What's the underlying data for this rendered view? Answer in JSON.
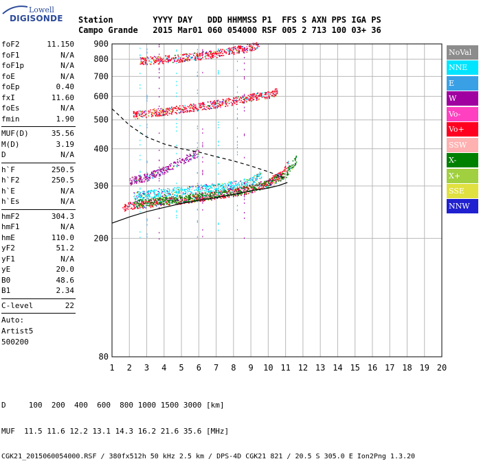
{
  "logo": {
    "line1": "Lowell",
    "line2": "DIGISONDE"
  },
  "header": {
    "labels": "Station        YYYY DAY   DDD HHMMSS P1  FFS S AXN PPS IGA PS",
    "values": "Campo Grande   2015 Mar01 060 054000 RSF 005 2 713 100 03+ 36"
  },
  "params": {
    "group1": [
      {
        "k": "foF2",
        "v": "11.150"
      },
      {
        "k": "foF1",
        "v": "N/A"
      },
      {
        "k": "foF1p",
        "v": "N/A"
      },
      {
        "k": "foE",
        "v": "N/A"
      },
      {
        "k": "foEp",
        "v": "0.40"
      },
      {
        "k": "fxI",
        "v": "11.60"
      },
      {
        "k": "foEs",
        "v": "N/A"
      },
      {
        "k": "fmin",
        "v": "1.90"
      }
    ],
    "group2": [
      {
        "k": "MUF(D)",
        "v": "35.56"
      },
      {
        "k": "M(D)",
        "v": "3.19"
      },
      {
        "k": "D",
        "v": "N/A"
      }
    ],
    "group3": [
      {
        "k": "h`F",
        "v": "250.5"
      },
      {
        "k": "h`F2",
        "v": "250.5"
      },
      {
        "k": "h`E",
        "v": "N/A"
      },
      {
        "k": "h`Es",
        "v": "N/A"
      }
    ],
    "group4": [
      {
        "k": "hmF2",
        "v": "304.3"
      },
      {
        "k": "hmF1",
        "v": "N/A"
      },
      {
        "k": "hmE",
        "v": "110.0"
      },
      {
        "k": "yF2",
        "v": "51.2"
      },
      {
        "k": "yF1",
        "v": "N/A"
      },
      {
        "k": "yE",
        "v": "20.0"
      },
      {
        "k": "B0",
        "v": "48.6"
      },
      {
        "k": "B1",
        "v": "2.34"
      }
    ],
    "clevel": {
      "k": "C-level",
      "v": "22"
    },
    "auto": [
      "Auto:",
      "Artist5",
      "500200"
    ]
  },
  "legend": [
    {
      "label": "NoVal",
      "color": "#8c8c8c"
    },
    {
      "label": "NNE",
      "color": "#00e5ff"
    },
    {
      "label": "E",
      "color": "#3aa0e6"
    },
    {
      "label": "W",
      "color": "#a000a0"
    },
    {
      "label": "Vo-",
      "color": "#ff40c0"
    },
    {
      "label": "Vo+",
      "color": "#ff0020"
    },
    {
      "label": "SSW",
      "color": "#ffb0b0"
    },
    {
      "label": "X-",
      "color": "#008000"
    },
    {
      "label": "X+",
      "color": "#a0d040"
    },
    {
      "label": "SSE",
      "color": "#e0e040"
    },
    {
      "label": "NNW",
      "color": "#2020d0"
    }
  ],
  "footer": {
    "line1": "D     100  200  400  600  800 1000 1500 3000 [km]",
    "line2": "MUF  11.5 11.6 12.2 13.1 14.3 16.2 21.6 35.6 [MHz]",
    "line3": "CGK21_2015060054000.RSF / 380fx512h 50 kHz 2.5 km / DPS-4D CGK21 821 / 20.5 S 305.0 E Ion2Png 1.3.20"
  },
  "chart_data": {
    "type": "scatter",
    "title": "",
    "xlabel": "",
    "ylabel": "",
    "xlim": [
      1,
      20
    ],
    "ylim": [
      80,
      900
    ],
    "y_scale": "log",
    "x_ticks": [
      1,
      2,
      3,
      4,
      5,
      6,
      7,
      8,
      9,
      10,
      11,
      12,
      13,
      14,
      15,
      16,
      17,
      18,
      19,
      20
    ],
    "y_ticks": [
      80,
      200,
      300,
      400,
      500,
      600,
      700,
      800,
      900
    ],
    "grid": true,
    "traces": [
      {
        "name": "F2 O-trace",
        "color": "#ff0020",
        "points": [
          [
            1.6,
            255
          ],
          [
            2,
            258
          ],
          [
            3,
            262
          ],
          [
            4,
            266
          ],
          [
            5,
            270
          ],
          [
            6,
            275
          ],
          [
            7,
            280
          ],
          [
            8,
            286
          ],
          [
            9,
            293
          ],
          [
            10,
            310
          ],
          [
            10.8,
            330
          ],
          [
            11.15,
            360
          ]
        ]
      },
      {
        "name": "F2 X-trace",
        "color": "#008000",
        "points": [
          [
            2.2,
            262
          ],
          [
            3,
            265
          ],
          [
            4,
            268
          ],
          [
            5,
            272
          ],
          [
            6,
            277
          ],
          [
            7,
            282
          ],
          [
            8,
            289
          ],
          [
            9,
            296
          ],
          [
            10,
            305
          ],
          [
            11,
            330
          ],
          [
            11.6,
            370
          ]
        ]
      },
      {
        "name": "Oblique",
        "color": "#00e5ff",
        "points": [
          [
            2.2,
            278
          ],
          [
            3,
            282
          ],
          [
            4,
            286
          ],
          [
            5,
            290
          ],
          [
            6,
            294
          ],
          [
            7,
            298
          ],
          [
            8,
            303
          ],
          [
            9,
            312
          ],
          [
            9.6,
            330
          ]
        ]
      },
      {
        "name": "Upper",
        "color": "#a000a0",
        "points": [
          [
            2,
            312
          ],
          [
            3,
            322
          ],
          [
            4,
            340
          ],
          [
            5,
            365
          ],
          [
            6,
            390
          ]
        ]
      },
      {
        "name": "2F multiple",
        "color": "#ff0020",
        "points": [
          [
            2.2,
            520
          ],
          [
            3,
            527
          ],
          [
            4,
            535
          ],
          [
            5,
            545
          ],
          [
            6,
            555
          ],
          [
            7,
            567
          ],
          [
            8,
            580
          ],
          [
            9,
            595
          ],
          [
            10,
            610
          ],
          [
            10.5,
            625
          ]
        ]
      },
      {
        "name": "3F multiple",
        "color": "#ff0020",
        "points": [
          [
            2.6,
            790
          ],
          [
            3,
            793
          ],
          [
            4,
            800
          ],
          [
            5,
            810
          ],
          [
            6,
            822
          ],
          [
            7,
            838
          ],
          [
            8,
            858
          ],
          [
            9,
            880
          ],
          [
            9.5,
            900
          ]
        ]
      }
    ],
    "profile_line": [
      [
        1,
        225
      ],
      [
        2,
        236
      ],
      [
        3,
        246
      ],
      [
        4,
        254
      ],
      [
        5,
        262
      ],
      [
        6,
        268
      ],
      [
        7,
        274
      ],
      [
        8,
        281
      ],
      [
        9,
        289
      ],
      [
        10,
        295
      ],
      [
        10.6,
        301
      ],
      [
        11.1,
        308
      ]
    ],
    "muf_curve": [
      [
        1,
        545
      ],
      [
        2,
        480
      ],
      [
        3,
        438
      ],
      [
        4,
        415
      ],
      [
        5,
        400
      ],
      [
        6,
        390
      ],
      [
        7,
        376
      ],
      [
        8,
        364
      ],
      [
        9,
        350
      ],
      [
        10,
        335
      ],
      [
        11,
        318
      ]
    ]
  }
}
